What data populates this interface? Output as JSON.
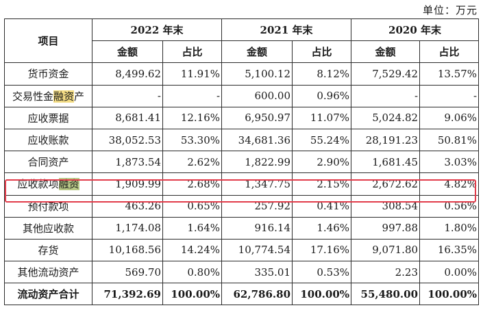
{
  "unit_label": "单位：万元",
  "header": {
    "item": "项目",
    "years": [
      "2022 年末",
      "2021 年末",
      "2020 年末"
    ],
    "amount": "金额",
    "ratio": "占比"
  },
  "rows": [
    {
      "label_parts": [
        "货币资金"
      ],
      "v": [
        "8,499.62",
        "11.91%",
        "5,100.12",
        "8.12%",
        "7,529.42",
        "13.57%"
      ]
    },
    {
      "label_parts": [
        "交易性金",
        "融资",
        "产"
      ],
      "v": [
        "-",
        "-",
        "600.00",
        "0.96%",
        "-",
        "-"
      ]
    },
    {
      "label_parts": [
        "应收票据"
      ],
      "v": [
        "8,681.41",
        "12.16%",
        "6,950.97",
        "11.07%",
        "5,024.82",
        "9.06%"
      ]
    },
    {
      "label_parts": [
        "应收账款"
      ],
      "v": [
        "38,052.53",
        "53.30%",
        "34,681.36",
        "55.24%",
        "28,191.23",
        "50.81%"
      ]
    },
    {
      "label_parts": [
        "合同资产"
      ],
      "v": [
        "1,873.54",
        "2.62%",
        "1,822.99",
        "2.90%",
        "1,681.45",
        "3.03%"
      ]
    },
    {
      "label_parts": [
        "应收款项",
        "融资",
        ""
      ],
      "v": [
        "1,909.99",
        "2.68%",
        "1,347.75",
        "2.15%",
        "2,672.62",
        "4.82%"
      ]
    },
    {
      "label_parts": [
        "预付款项"
      ],
      "v": [
        "463.26",
        "0.65%",
        "257.92",
        "0.41%",
        "308.54",
        "0.56%"
      ]
    },
    {
      "label_parts": [
        "其他应收款"
      ],
      "v": [
        "1,174.08",
        "1.64%",
        "916.14",
        "1.46%",
        "997.88",
        "1.80%"
      ]
    },
    {
      "label_parts": [
        "存货"
      ],
      "v": [
        "10,168.56",
        "14.24%",
        "10,774.54",
        "17.16%",
        "9,071.80",
        "16.35%"
      ]
    },
    {
      "label_parts": [
        "其他流动资产"
      ],
      "v": [
        "569.70",
        "0.80%",
        "335.01",
        "0.53%",
        "2.23",
        "0.00%"
      ]
    }
  ],
  "total": {
    "label": "流动资产合计",
    "v": [
      "71,392.69",
      "100.00%",
      "62,786.80",
      "100.00%",
      "55,480.00",
      "100.00%"
    ]
  },
  "colors": {
    "highlight_yellow": "#f3dc84",
    "highlight_green": "#b9c987",
    "box_red": "#e23b4a"
  }
}
